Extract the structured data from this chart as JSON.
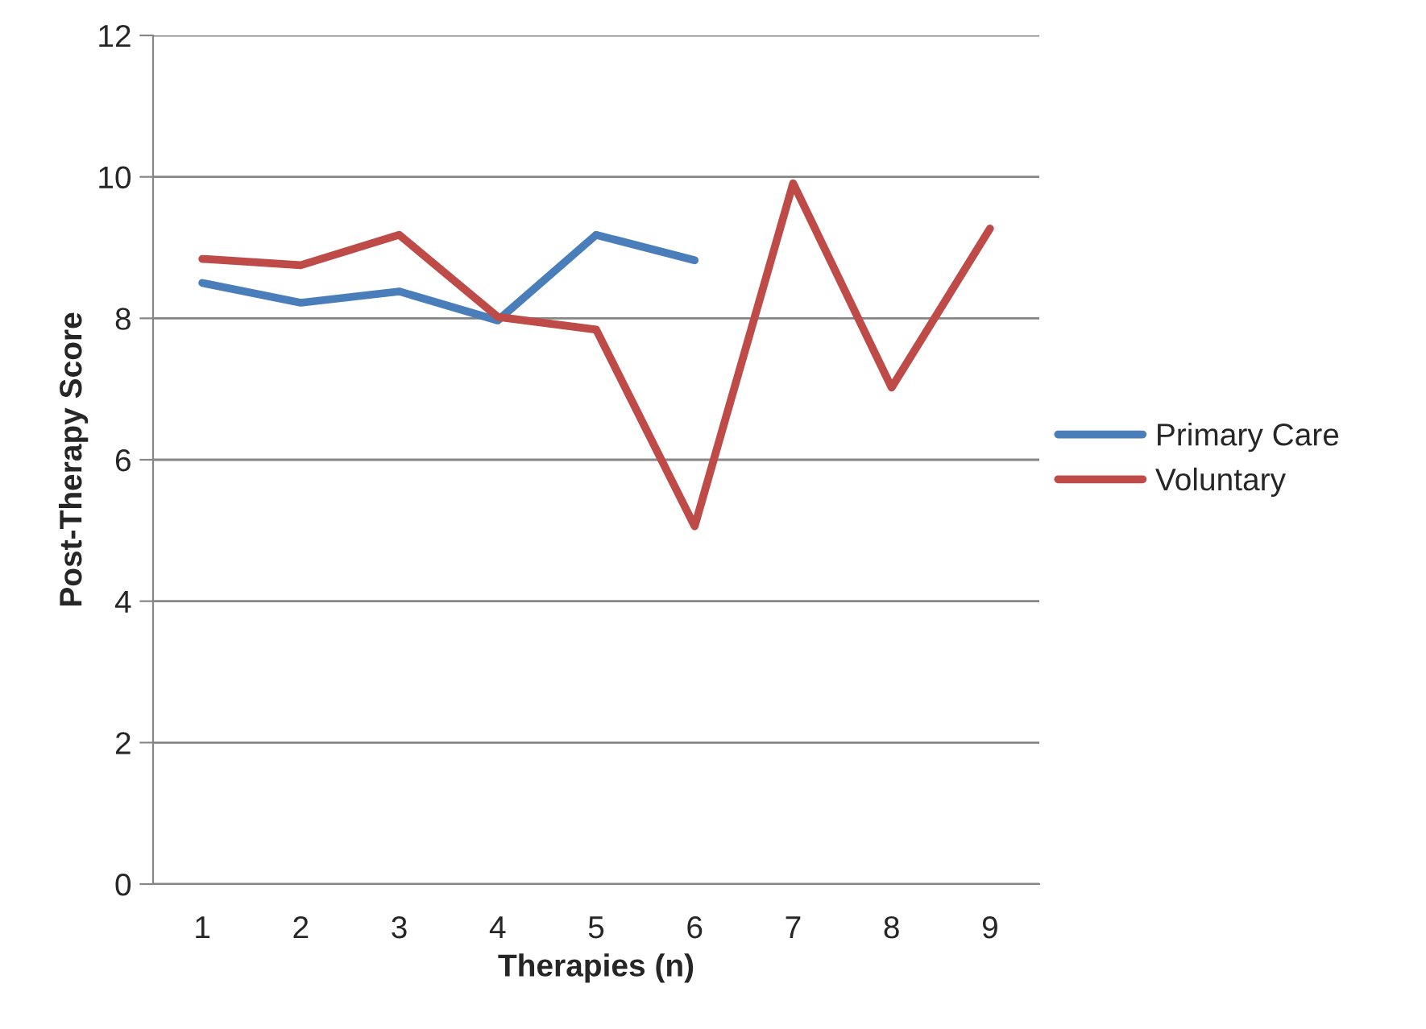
{
  "chart_data": {
    "type": "line",
    "xlabel": "Therapies (n)",
    "ylabel": "Post-Therapy Score",
    "categories": [
      "1",
      "2",
      "3",
      "4",
      "5",
      "6",
      "7",
      "8",
      "9"
    ],
    "series": [
      {
        "name": "Primary Care",
        "color": "#4a7ebb",
        "values": [
          8.5,
          8.22,
          8.38,
          7.97,
          9.18,
          8.82,
          null,
          null,
          null
        ]
      },
      {
        "name": "Voluntary",
        "color": "#be4b48",
        "values": [
          8.84,
          8.75,
          9.18,
          8.02,
          7.84,
          5.06,
          9.91,
          7.02,
          9.27
        ]
      }
    ],
    "ylim": [
      0,
      12
    ],
    "yticks": [
      0,
      2,
      4,
      6,
      8,
      10,
      12
    ],
    "grid": "y",
    "legend": "right",
    "marker": "none",
    "line_style": "solid"
  }
}
